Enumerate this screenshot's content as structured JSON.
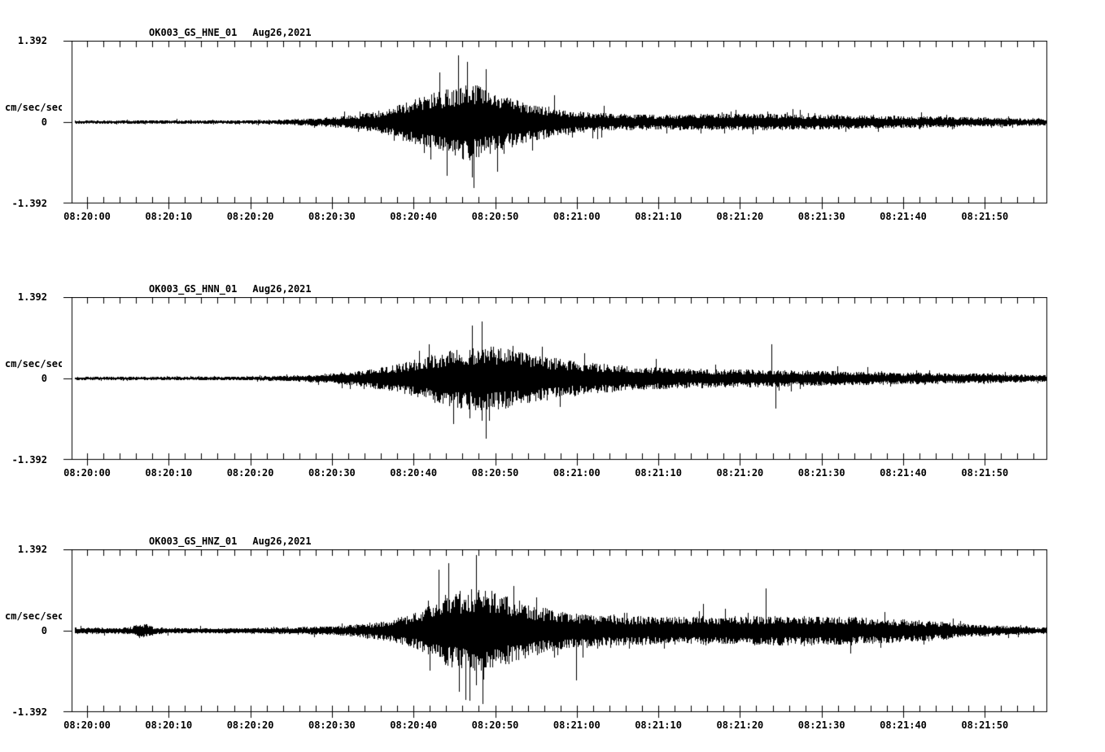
{
  "figure": {
    "background_color": "#ffffff",
    "description_visible_text_only": true
  },
  "chart_data": {
    "type": "line",
    "subtype": "seismogram-three-panel",
    "trace_color": "#000000",
    "y_axis": {
      "unit_label": "cm/sec/sec",
      "min": -1.392,
      "max": 1.392,
      "ticks": [
        {
          "value": 1.392,
          "label": "1.392"
        },
        {
          "value": 0,
          "label": "0"
        },
        {
          "value": -1.392,
          "label": "-1.392"
        }
      ]
    },
    "x_axis": {
      "start_time": "08:20:00",
      "duration_s": 118,
      "major_tick_interval_s": 10,
      "minor_tick_interval_s": 2,
      "tick_labels": [
        "08:20:00",
        "08:20:10",
        "08:20:20",
        "08:20:30",
        "08:20:40",
        "08:20:50",
        "08:21:00",
        "08:21:10",
        "08:21:20",
        "08:21:30",
        "08:21:40",
        "08:21:50"
      ]
    },
    "panels": [
      {
        "station": "OK003_GS_HNE_01",
        "date": "Aug26,2021",
        "envelope_t_amp": [
          [
            -2,
            0.03
          ],
          [
            0,
            0.03
          ],
          [
            10,
            0.03
          ],
          [
            20,
            0.035
          ],
          [
            24,
            0.045
          ],
          [
            27,
            0.06
          ],
          [
            30,
            0.09
          ],
          [
            33,
            0.13
          ],
          [
            36,
            0.2
          ],
          [
            38,
            0.28
          ],
          [
            40,
            0.4
          ],
          [
            42,
            0.5
          ],
          [
            44,
            0.58
          ],
          [
            46,
            0.64
          ],
          [
            47,
            0.68
          ],
          [
            48,
            0.64
          ],
          [
            50,
            0.52
          ],
          [
            52,
            0.43
          ],
          [
            54,
            0.35
          ],
          [
            56,
            0.28
          ],
          [
            58,
            0.22
          ],
          [
            60,
            0.185
          ],
          [
            63,
            0.155
          ],
          [
            66,
            0.14
          ],
          [
            70,
            0.13
          ],
          [
            74,
            0.135
          ],
          [
            78,
            0.145
          ],
          [
            82,
            0.15
          ],
          [
            86,
            0.14
          ],
          [
            90,
            0.13
          ],
          [
            94,
            0.12
          ],
          [
            98,
            0.11
          ],
          [
            102,
            0.1
          ],
          [
            106,
            0.09
          ],
          [
            110,
            0.08
          ],
          [
            114,
            0.07
          ],
          [
            118,
            0.06
          ]
        ],
        "notable_spikes_t_amp": [
          [
            43.2,
            0.85
          ],
          [
            44.1,
            -0.92
          ],
          [
            46.6,
            1.03
          ],
          [
            47.4,
            -1.13
          ],
          [
            48.9,
            0.9
          ],
          [
            50.2,
            -0.85
          ]
        ]
      },
      {
        "station": "OK003_GS_HNN_01",
        "date": "Aug26,2021",
        "envelope_t_amp": [
          [
            -2,
            0.03
          ],
          [
            0,
            0.03
          ],
          [
            10,
            0.03
          ],
          [
            20,
            0.035
          ],
          [
            24,
            0.045
          ],
          [
            27,
            0.06
          ],
          [
            30,
            0.09
          ],
          [
            33,
            0.13
          ],
          [
            36,
            0.19
          ],
          [
            39,
            0.28
          ],
          [
            41,
            0.36
          ],
          [
            43,
            0.44
          ],
          [
            45,
            0.5
          ],
          [
            47,
            0.54
          ],
          [
            49,
            0.57
          ],
          [
            51,
            0.52
          ],
          [
            53,
            0.46
          ],
          [
            56,
            0.38
          ],
          [
            59,
            0.31
          ],
          [
            62,
            0.26
          ],
          [
            65,
            0.23
          ],
          [
            68,
            0.21
          ],
          [
            72,
            0.18
          ],
          [
            76,
            0.16
          ],
          [
            80,
            0.155
          ],
          [
            84,
            0.15
          ],
          [
            88,
            0.135
          ],
          [
            92,
            0.125
          ],
          [
            96,
            0.115
          ],
          [
            100,
            0.105
          ],
          [
            104,
            0.095
          ],
          [
            108,
            0.085
          ],
          [
            112,
            0.075
          ],
          [
            116,
            0.065
          ],
          [
            118,
            0.06
          ]
        ],
        "notable_spikes_t_amp": [
          [
            44.9,
            -0.78
          ],
          [
            47.2,
            0.9
          ],
          [
            48.4,
            0.98
          ],
          [
            48.9,
            -1.03
          ],
          [
            83.8,
            0.59
          ],
          [
            84.3,
            -0.52
          ]
        ]
      },
      {
        "station": "OK003_GS_HNZ_01",
        "date": "Aug26,2021",
        "envelope_t_amp": [
          [
            -2,
            0.055
          ],
          [
            0,
            0.055
          ],
          [
            4,
            0.05
          ],
          [
            5.5,
            0.07
          ],
          [
            6.5,
            0.14
          ],
          [
            7.5,
            0.1
          ],
          [
            8.5,
            0.06
          ],
          [
            10,
            0.05
          ],
          [
            15,
            0.045
          ],
          [
            20,
            0.05
          ],
          [
            25,
            0.06
          ],
          [
            30,
            0.08
          ],
          [
            33,
            0.11
          ],
          [
            36,
            0.16
          ],
          [
            38,
            0.22
          ],
          [
            40,
            0.3
          ],
          [
            42,
            0.44
          ],
          [
            44,
            0.6
          ],
          [
            46,
            0.7
          ],
          [
            48,
            0.76
          ],
          [
            49,
            0.72
          ],
          [
            50,
            0.66
          ],
          [
            52,
            0.56
          ],
          [
            54,
            0.46
          ],
          [
            56,
            0.39
          ],
          [
            58,
            0.34
          ],
          [
            60,
            0.3
          ],
          [
            63,
            0.27
          ],
          [
            66,
            0.255
          ],
          [
            70,
            0.24
          ],
          [
            74,
            0.245
          ],
          [
            78,
            0.255
          ],
          [
            82,
            0.26
          ],
          [
            86,
            0.25
          ],
          [
            90,
            0.25
          ],
          [
            93,
            0.245
          ],
          [
            96,
            0.225
          ],
          [
            99,
            0.205
          ],
          [
            102,
            0.18
          ],
          [
            105,
            0.15
          ],
          [
            108,
            0.115
          ],
          [
            111,
            0.09
          ],
          [
            114,
            0.07
          ],
          [
            117,
            0.06
          ],
          [
            118,
            0.055
          ]
        ],
        "notable_spikes_t_amp": [
          [
            43.1,
            1.05
          ],
          [
            44.3,
            1.16
          ],
          [
            45.6,
            -1.05
          ],
          [
            46.9,
            -1.2
          ],
          [
            47.7,
            1.29
          ],
          [
            48.5,
            -1.25
          ],
          [
            59.9,
            -0.85
          ],
          [
            83.2,
            0.73
          ]
        ]
      }
    ]
  }
}
